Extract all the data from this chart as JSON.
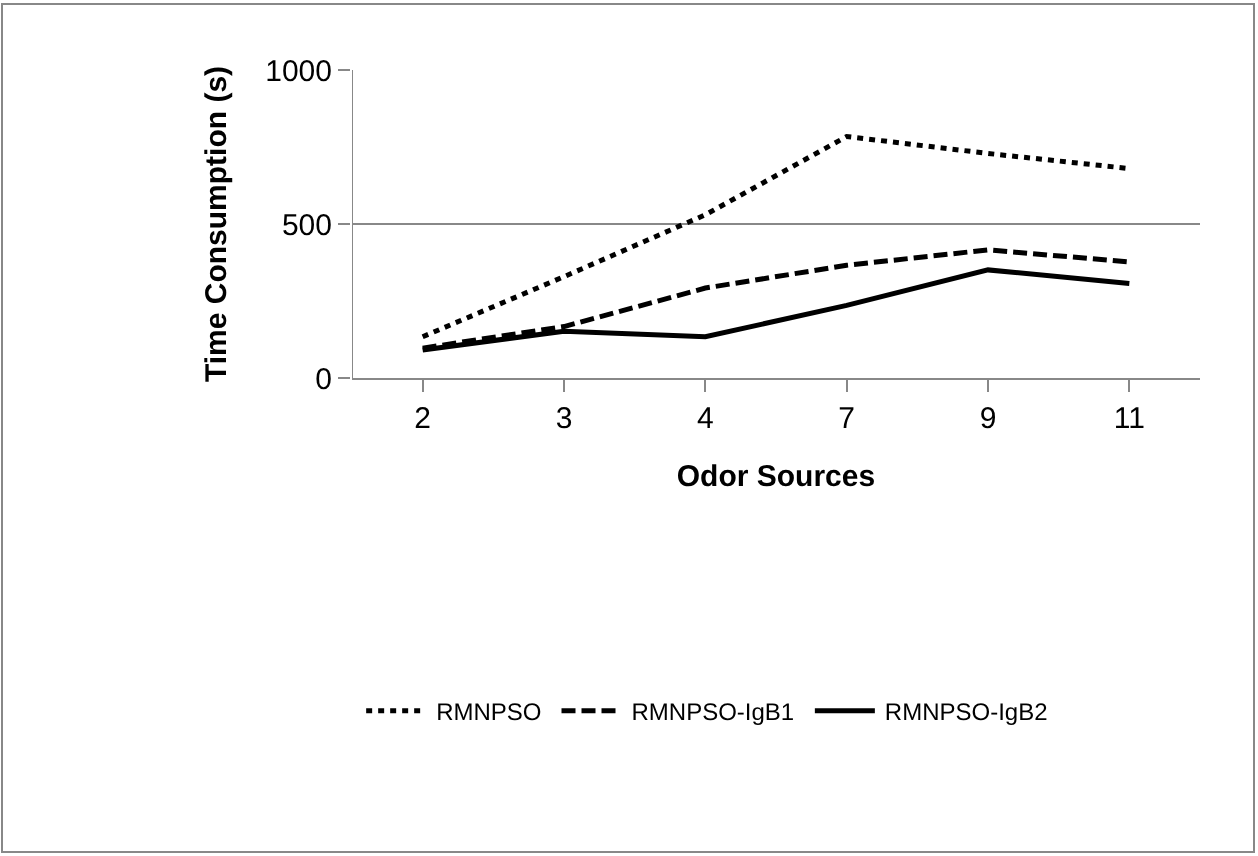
{
  "chart_data": {
    "type": "line",
    "xlabel": "Odor Sources",
    "ylabel": "Time Consumption (s)",
    "categories": [
      "2",
      "3",
      "4",
      "7",
      "9",
      "11"
    ],
    "series": [
      {
        "name": "RMNPSO",
        "color": "#000000",
        "line_style": "dotted",
        "values": [
          134,
          329,
          530,
          784,
          729,
          680
        ]
      },
      {
        "name": "RMNPSO-IgB1",
        "color": "#000000",
        "line_style": "dashed",
        "values": [
          97,
          167,
          292,
          366,
          416,
          377
        ]
      },
      {
        "name": "RMNPSO-IgB2",
        "color": "#000000",
        "line_style": "solid",
        "values": [
          91,
          152,
          134,
          236,
          351,
          307
        ]
      }
    ],
    "ylim": [
      0,
      1000
    ],
    "yticks": [
      0,
      500,
      1000
    ],
    "grid": "y",
    "legend": "bottom",
    "marker": "none"
  }
}
